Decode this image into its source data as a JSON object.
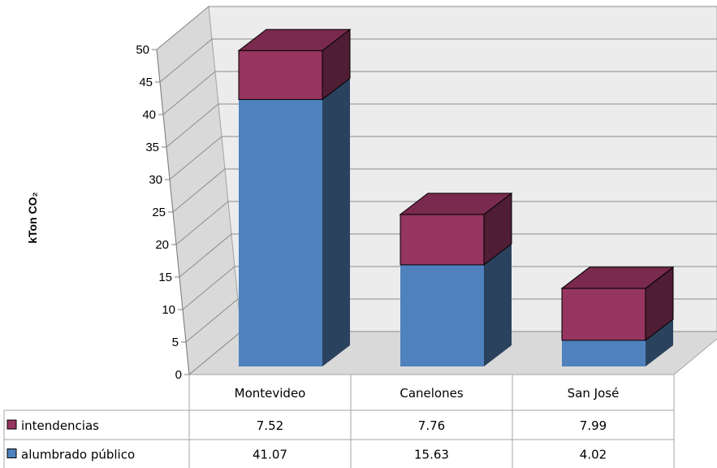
{
  "chart_data": {
    "type": "bar",
    "stacked": true,
    "three_d": true,
    "ylabel": "kTon CO₂",
    "ylim": [
      0,
      50
    ],
    "ytick_step": 5,
    "grid": true,
    "categories": [
      "Montevideo",
      "Canelones",
      "San José"
    ],
    "series": [
      {
        "name": "alumbrado público",
        "values": [
          41.07,
          15.63,
          4.02
        ],
        "color": "#4f81bd",
        "side_color": "#2b425e",
        "top_color": "#4f81bd"
      },
      {
        "name": "intendencias",
        "values": [
          7.52,
          7.76,
          7.99
        ],
        "color": "#953560",
        "side_color": "#4f1d34",
        "top_color": "#7a2a4e"
      }
    ],
    "table": {
      "rows": [
        {
          "label": "intendencias",
          "values": [
            "7.52",
            "7.76",
            "7.99"
          ]
        },
        {
          "label": "alumbrado público",
          "values": [
            "41.07",
            "15.63",
            "4.02"
          ]
        }
      ]
    }
  }
}
